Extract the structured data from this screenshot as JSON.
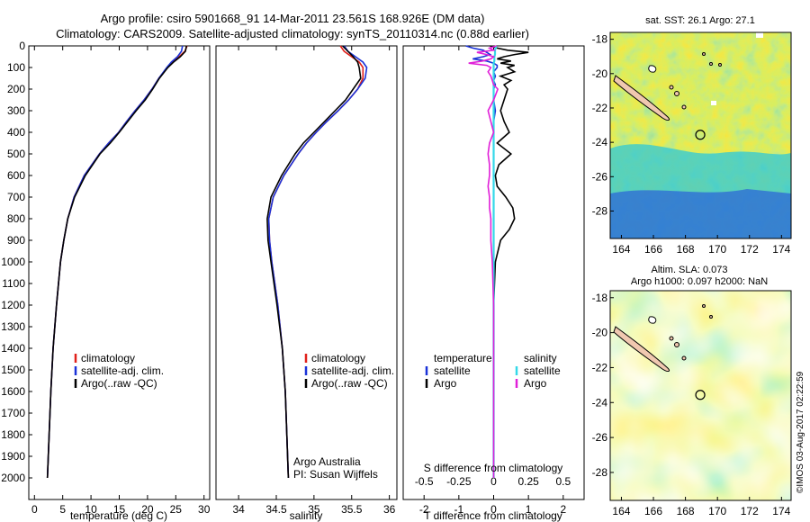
{
  "title_line1": "Argo profile: csiro 5901668_91 14-Mar-2011 23.561S 168.926E (DM data)",
  "title_line2": "Climatology: CARS2009. Satellite-adjusted climatology: synTS_20110314.nc (0.88d earlier)",
  "footer": "©IMOS 03-Aug-2017 02:22:59",
  "colors": {
    "climatology": "#e0201a",
    "satellite": "#1a32d8",
    "argo": "#000000",
    "sat_salinity": "#35d8e8",
    "argo_salinity": "#e020d8",
    "land": "#f0c8b0"
  },
  "chart_data": [
    {
      "id": "temperature",
      "type": "line",
      "xlabel": "temperature (deg C)",
      "ylabel": "",
      "xlim": [
        -1,
        31
      ],
      "ylim": [
        2100,
        0
      ],
      "xticks": [
        0,
        5,
        10,
        15,
        20,
        25,
        30
      ],
      "yticks": [
        0,
        100,
        200,
        300,
        400,
        500,
        600,
        700,
        800,
        900,
        1000,
        1100,
        1200,
        1300,
        1400,
        1500,
        1600,
        1700,
        1800,
        1900,
        2000
      ],
      "depth": [
        0,
        25,
        50,
        75,
        100,
        150,
        200,
        250,
        300,
        350,
        400,
        450,
        500,
        600,
        700,
        800,
        900,
        1000,
        1200,
        1400,
        1600,
        1800,
        2000
      ],
      "series": [
        {
          "name": "climatology",
          "color_key": "climatology",
          "values": [
            27.0,
            26.6,
            25.6,
            24.4,
            23.5,
            22.0,
            20.8,
            19.4,
            17.8,
            16.3,
            14.9,
            13.1,
            11.5,
            8.8,
            7.0,
            5.9,
            5.2,
            4.6,
            3.9,
            3.3,
            2.9,
            2.6,
            2.3
          ]
        },
        {
          "name": "satellite-adj. clim.",
          "color_key": "satellite",
          "values": [
            26.2,
            26.0,
            25.3,
            24.2,
            23.4,
            22.0,
            20.8,
            19.4,
            17.8,
            16.3,
            14.9,
            13.1,
            11.5,
            8.8,
            7.0,
            5.9,
            5.2,
            4.6,
            3.9,
            3.3,
            2.9,
            2.6,
            2.3
          ]
        },
        {
          "name": "Argo(..raw -QC)",
          "color_key": "argo",
          "values": [
            26.9,
            26.7,
            25.8,
            24.6,
            23.6,
            22.1,
            20.9,
            19.6,
            18.0,
            16.5,
            15.0,
            13.4,
            11.6,
            9.0,
            7.1,
            5.9,
            5.2,
            4.6,
            3.9,
            3.3,
            2.9,
            2.6,
            2.3
          ]
        }
      ],
      "legend": [
        "climatology",
        "satellite-adj. clim.",
        "Argo(..raw -QC)"
      ]
    },
    {
      "id": "salinity",
      "type": "line",
      "xlabel": "salinity",
      "xlim": [
        33.7,
        36.1
      ],
      "ylim": [
        2100,
        0
      ],
      "xticks": [
        34,
        34.5,
        35,
        35.5,
        36
      ],
      "depth": [
        0,
        25,
        50,
        75,
        100,
        150,
        200,
        250,
        300,
        350,
        400,
        450,
        500,
        600,
        700,
        800,
        900,
        1000,
        1200,
        1400,
        1600,
        1800,
        2000
      ],
      "series": [
        {
          "name": "climatology",
          "color_key": "climatology",
          "values": [
            35.35,
            35.4,
            35.5,
            35.6,
            35.65,
            35.65,
            35.58,
            35.46,
            35.32,
            35.17,
            35.03,
            34.9,
            34.79,
            34.6,
            34.46,
            34.4,
            34.41,
            34.44,
            34.52,
            34.58,
            34.62,
            34.64,
            34.66
          ]
        },
        {
          "name": "satellite-adj. clim.",
          "color_key": "satellite",
          "values": [
            35.4,
            35.45,
            35.55,
            35.65,
            35.7,
            35.68,
            35.58,
            35.46,
            35.32,
            35.17,
            35.03,
            34.9,
            34.79,
            34.6,
            34.46,
            34.4,
            34.41,
            34.44,
            34.52,
            34.58,
            34.62,
            34.64,
            34.66
          ]
        },
        {
          "name": "Argo(..raw -QC)",
          "color_key": "argo",
          "values": [
            35.38,
            35.45,
            35.52,
            35.58,
            35.6,
            35.62,
            35.52,
            35.42,
            35.28,
            35.14,
            35.0,
            34.86,
            34.75,
            34.57,
            34.43,
            34.38,
            34.39,
            34.43,
            34.51,
            34.58,
            34.62,
            34.64,
            34.66
          ]
        }
      ],
      "legend": [
        "climatology",
        "satellite-adj. clim.",
        "Argo(..raw -QC)"
      ],
      "notes": [
        "Argo Australia",
        "PI: Susan Wijffels"
      ]
    },
    {
      "id": "difference",
      "type": "line",
      "xlabel": "T difference from climatology",
      "top_label": "S difference from climatology",
      "xlim": [
        -2.6,
        2.6
      ],
      "ylim": [
        2100,
        0
      ],
      "xticks": [
        -2,
        -1,
        0,
        1,
        2
      ],
      "xtick_labels": [
        "-2",
        "-1",
        "0",
        "1",
        "2"
      ],
      "top_ticks": [
        -0.5,
        -0.25,
        0,
        0.25,
        0.5
      ],
      "top_tick_labels": [
        "-0.5",
        "-0.25",
        "0",
        "0.25",
        "0.5"
      ],
      "top_scale": 4,
      "depth": [
        0,
        10,
        20,
        30,
        40,
        50,
        60,
        70,
        80,
        90,
        100,
        120,
        140,
        160,
        180,
        200,
        250,
        300,
        350,
        400,
        450,
        500,
        550,
        600,
        650,
        700,
        750,
        800,
        850,
        900,
        1000,
        1200,
        1500,
        2000
      ],
      "series": [
        {
          "name": "satellite",
          "group": "temperature",
          "color_key": "satellite",
          "values": [
            -0.8,
            -0.6,
            -0.3,
            -0.2,
            -0.1,
            -0.3,
            -0.6,
            -0.2,
            0.0,
            0.1,
            0.1,
            0.0,
            0.05,
            0.0,
            0.05,
            0.0,
            0.0,
            0.05,
            0.0,
            0.0,
            0.0,
            0.0,
            0.0,
            0.0,
            0.0,
            0.0,
            0.0,
            0.0,
            0.0,
            0.0,
            0.0,
            0.0,
            0.0,
            0.0
          ]
        },
        {
          "name": "Argo",
          "group": "temperature",
          "color_key": "argo",
          "values": [
            -0.1,
            0.1,
            0.4,
            1.0,
            0.6,
            0.3,
            0.1,
            0.5,
            0.2,
            0.6,
            0.4,
            0.6,
            0.2,
            0.5,
            0.3,
            0.4,
            0.3,
            0.2,
            0.3,
            0.45,
            0.1,
            0.5,
            0.15,
            0.05,
            0.1,
            0.35,
            0.55,
            0.6,
            0.45,
            0.2,
            0.05,
            0.0,
            0.0,
            0.0
          ]
        },
        {
          "name": "satellite",
          "group": "salinity",
          "color_key": "sat_salinity",
          "values": [
            0.02,
            0.015,
            0.01,
            0.01,
            0.01,
            0.005,
            0.005,
            0.005,
            0.0,
            0.0,
            0.0,
            0.0,
            0.0,
            0.0,
            0.0,
            0.0,
            0.0,
            0.0,
            0.0,
            0.0,
            0.0,
            0.0,
            0.0,
            0.0,
            0.0,
            0.0,
            0.0,
            0.0,
            0.0,
            0.0,
            0.0,
            0.0,
            0.0,
            0.0
          ]
        },
        {
          "name": "Argo",
          "group": "salinity",
          "color_key": "argo_salinity",
          "values": [
            0.02,
            -0.03,
            0.0,
            -0.12,
            -0.05,
            0.0,
            -0.02,
            -0.08,
            -0.18,
            -0.05,
            -0.02,
            -0.04,
            -0.02,
            -0.01,
            0.0,
            0.03,
            0.0,
            -0.04,
            -0.02,
            0.0,
            -0.03,
            -0.04,
            -0.03,
            -0.03,
            -0.04,
            -0.03,
            -0.03,
            -0.02,
            -0.02,
            -0.02,
            -0.01,
            0.0,
            0.0,
            0.0
          ]
        }
      ],
      "legend_groups": [
        {
          "title": "temperature",
          "items": [
            "satellite",
            "Argo"
          ]
        },
        {
          "title": "salinity",
          "items": [
            "satellite",
            "Argo"
          ]
        }
      ]
    },
    {
      "id": "sst-map",
      "type": "heatmap",
      "title": "sat. SST: 26.1  Argo: 27.1",
      "xlim": [
        163.3,
        174.6
      ],
      "ylim": [
        -29.6,
        -17.6
      ],
      "xticks": [
        164,
        166,
        168,
        170,
        172,
        174
      ],
      "yticks": [
        -18,
        -20,
        -22,
        -24,
        -26,
        -28
      ],
      "profile_location": [
        168.926,
        -23.561
      ]
    },
    {
      "id": "sla-map",
      "type": "heatmap",
      "title_line1": "Altim. SLA: 0.073",
      "title_line2": "Argo h1000: 0.097  h2000: NaN",
      "xlim": [
        163.3,
        174.6
      ],
      "ylim": [
        -29.6,
        -17.6
      ],
      "xticks": [
        164,
        166,
        168,
        170,
        172,
        174
      ],
      "yticks": [
        -18,
        -20,
        -22,
        -24,
        -26,
        -28
      ],
      "profile_location": [
        168.926,
        -23.561
      ]
    }
  ]
}
